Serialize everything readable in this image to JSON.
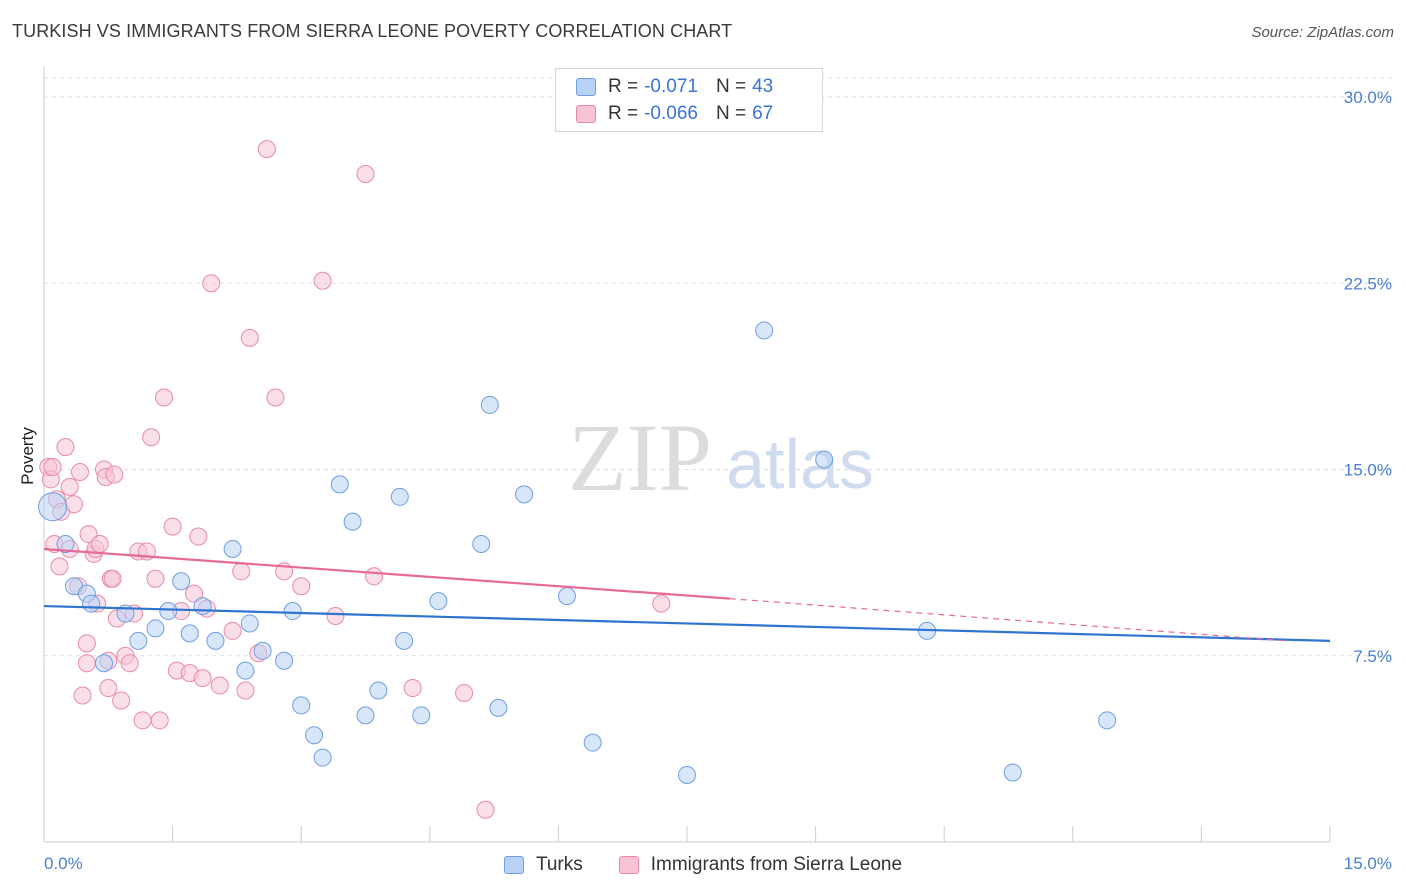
{
  "title": "TURKISH VS IMMIGRANTS FROM SIERRA LEONE POVERTY CORRELATION CHART",
  "source": "Source: ZipAtlas.com",
  "watermark": {
    "zip": "ZIP",
    "atlas": "atlas"
  },
  "colors": {
    "turks_fill": "#b8d2f5",
    "turks_stroke": "#6f9fe0",
    "turks_line": "#2e74d0",
    "sl_fill": "#f8c4d5",
    "sl_stroke": "#e98aaa",
    "sl_line": "#e66a96",
    "grid": "#dddddd",
    "accent_text": "#4a7fd0"
  },
  "legend": {
    "rows": [
      {
        "r_label": "R =",
        "r_value": "-0.071",
        "n_label": "N =",
        "n_value": "43"
      },
      {
        "r_label": "R =",
        "r_value": "-0.066",
        "n_label": "N =",
        "n_value": "67"
      }
    ]
  },
  "bottom_legend": {
    "turks": "Turks",
    "sierra_leone": "Immigrants from Sierra Leone"
  },
  "chart_data": {
    "type": "scatter",
    "title": "TURKISH VS IMMIGRANTS FROM SIERRA LEONE POVERTY CORRELATION CHART",
    "ylabel": "Poverty",
    "xlabel": "",
    "xlim": [
      0,
      15
    ],
    "ylim": [
      0,
      30
    ],
    "x_tick_labels": [
      "0.0%",
      "15.0%"
    ],
    "y_tick_labels": [
      "7.5%",
      "15.0%",
      "22.5%",
      "30.0%"
    ],
    "y_ticks": [
      7.5,
      15.0,
      22.5,
      30.0
    ],
    "grid": "horizontal dashed",
    "legend_placement": "top-center",
    "series": [
      {
        "name": "Turks",
        "r": -0.071,
        "n": 43,
        "trend": {
          "x0": 0,
          "y0": 9.5,
          "x1": 15,
          "y1": 8.1
        },
        "points": [
          [
            0.1,
            13.5
          ],
          [
            0.25,
            12.0
          ],
          [
            0.35,
            10.3
          ],
          [
            0.5,
            10.0
          ],
          [
            0.55,
            9.6
          ],
          [
            0.7,
            7.2
          ],
          [
            0.95,
            9.2
          ],
          [
            1.1,
            8.1
          ],
          [
            1.3,
            8.6
          ],
          [
            1.45,
            9.3
          ],
          [
            1.6,
            10.5
          ],
          [
            1.7,
            8.4
          ],
          [
            1.85,
            9.5
          ],
          [
            2.0,
            8.1
          ],
          [
            2.2,
            11.8
          ],
          [
            2.35,
            6.9
          ],
          [
            2.4,
            8.8
          ],
          [
            2.55,
            7.7
          ],
          [
            2.8,
            7.3
          ],
          [
            2.9,
            9.3
          ],
          [
            3.0,
            5.5
          ],
          [
            3.15,
            4.3
          ],
          [
            3.25,
            3.4
          ],
          [
            3.45,
            14.4
          ],
          [
            3.6,
            12.9
          ],
          [
            3.75,
            5.1
          ],
          [
            3.9,
            6.1
          ],
          [
            4.15,
            13.9
          ],
          [
            4.2,
            8.1
          ],
          [
            4.4,
            5.1
          ],
          [
            4.6,
            9.7
          ],
          [
            5.1,
            12.0
          ],
          [
            5.2,
            17.6
          ],
          [
            5.3,
            5.4
          ],
          [
            5.6,
            14.0
          ],
          [
            6.1,
            9.9
          ],
          [
            6.4,
            4.0
          ],
          [
            7.5,
            2.7
          ],
          [
            8.4,
            20.6
          ],
          [
            9.1,
            15.4
          ],
          [
            10.3,
            8.5
          ],
          [
            11.3,
            2.8
          ],
          [
            12.4,
            4.9
          ]
        ]
      },
      {
        "name": "Immigrants from Sierra Leone",
        "r": -0.066,
        "n": 67,
        "trend": {
          "x0": 0,
          "y0": 11.8,
          "x1": 8.0,
          "y1": 9.8
        },
        "trend_dashed": {
          "x0": 8.0,
          "y0": 9.8,
          "x1": 14.5,
          "y1": 8.1
        },
        "points": [
          [
            0.05,
            15.1
          ],
          [
            0.08,
            14.6
          ],
          [
            0.1,
            15.1
          ],
          [
            0.12,
            12.0
          ],
          [
            0.15,
            13.8
          ],
          [
            0.18,
            11.1
          ],
          [
            0.2,
            13.3
          ],
          [
            0.25,
            15.9
          ],
          [
            0.3,
            14.3
          ],
          [
            0.3,
            11.8
          ],
          [
            0.35,
            13.6
          ],
          [
            0.4,
            10.3
          ],
          [
            0.42,
            14.9
          ],
          [
            0.45,
            5.9
          ],
          [
            0.5,
            8.0
          ],
          [
            0.5,
            7.2
          ],
          [
            0.52,
            12.4
          ],
          [
            0.58,
            11.6
          ],
          [
            0.6,
            11.8
          ],
          [
            0.62,
            9.6
          ],
          [
            0.65,
            12.0
          ],
          [
            0.7,
            15.0
          ],
          [
            0.72,
            14.7
          ],
          [
            0.75,
            6.2
          ],
          [
            0.75,
            7.3
          ],
          [
            0.78,
            10.6
          ],
          [
            0.8,
            10.6
          ],
          [
            0.82,
            14.8
          ],
          [
            0.85,
            9.0
          ],
          [
            0.9,
            5.7
          ],
          [
            0.95,
            7.5
          ],
          [
            1.0,
            7.2
          ],
          [
            1.05,
            9.2
          ],
          [
            1.1,
            11.7
          ],
          [
            1.15,
            4.9
          ],
          [
            1.2,
            11.7
          ],
          [
            1.25,
            16.3
          ],
          [
            1.3,
            10.6
          ],
          [
            1.35,
            4.9
          ],
          [
            1.4,
            17.9
          ],
          [
            1.5,
            12.7
          ],
          [
            1.55,
            6.9
          ],
          [
            1.6,
            9.3
          ],
          [
            1.7,
            6.8
          ],
          [
            1.75,
            10.0
          ],
          [
            1.8,
            12.3
          ],
          [
            1.85,
            6.6
          ],
          [
            1.9,
            9.4
          ],
          [
            1.95,
            22.5
          ],
          [
            2.05,
            6.3
          ],
          [
            2.2,
            8.5
          ],
          [
            2.3,
            10.9
          ],
          [
            2.35,
            6.1
          ],
          [
            2.4,
            20.3
          ],
          [
            2.5,
            7.6
          ],
          [
            2.6,
            27.9
          ],
          [
            2.7,
            17.9
          ],
          [
            2.8,
            10.9
          ],
          [
            3.0,
            10.3
          ],
          [
            3.25,
            22.6
          ],
          [
            3.4,
            9.1
          ],
          [
            3.75,
            26.9
          ],
          [
            3.85,
            10.7
          ],
          [
            4.3,
            6.2
          ],
          [
            4.9,
            6.0
          ],
          [
            5.15,
            1.3
          ],
          [
            7.2,
            9.6
          ]
        ]
      }
    ]
  }
}
